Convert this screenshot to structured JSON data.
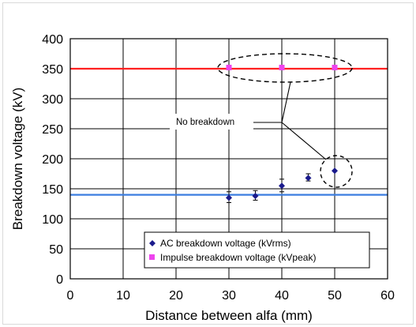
{
  "chart_data": {
    "type": "scatter",
    "title": "",
    "xlabel": "Distance between alfa (mm)",
    "ylabel": "Breakdown voltage (kV)",
    "xlim": [
      0,
      60
    ],
    "ylim": [
      0,
      400
    ],
    "xticks": [
      "0",
      "10",
      "20",
      "30",
      "40",
      "50",
      "60"
    ],
    "yticks": [
      "0",
      "50",
      "100",
      "150",
      "200",
      "250",
      "300",
      "350",
      "400"
    ],
    "grid": true,
    "legend_position": "bottom-right",
    "series": [
      {
        "name": "AC breakdown voltage (kVrms)",
        "marker": "diamond",
        "color": "#1a1a8c",
        "points": [
          {
            "x": 30,
            "y": 135,
            "err_low": 127,
            "err_high": 145
          },
          {
            "x": 35,
            "y": 138,
            "err_low": 131,
            "err_high": 147
          },
          {
            "x": 40,
            "y": 155,
            "err_low": 145,
            "err_high": 166
          },
          {
            "x": 45,
            "y": 168,
            "err_low": 163,
            "err_high": 175
          },
          {
            "x": 50,
            "y": 180,
            "err_low": 180,
            "err_high": 180
          }
        ]
      },
      {
        "name": "Impulse breakdown voltage (kVpeak)",
        "marker": "square",
        "color": "#ee44ee",
        "points": [
          {
            "x": 30,
            "y": 352
          },
          {
            "x": 40,
            "y": 352
          },
          {
            "x": 50,
            "y": 352
          }
        ]
      }
    ],
    "reference_lines": [
      {
        "axis": "y",
        "value": 350,
        "color": "#ff2020"
      },
      {
        "axis": "y",
        "value": 140,
        "color": "#3b7de0"
      }
    ],
    "annotation": {
      "text": "No breakdown",
      "color": "#000000"
    }
  }
}
